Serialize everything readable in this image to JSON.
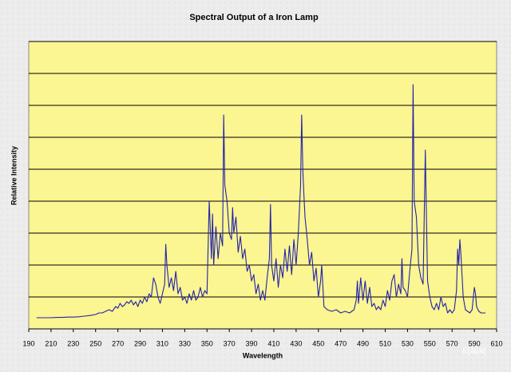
{
  "chart_data": {
    "type": "line",
    "title": "Spectral Output of a Iron Lamp",
    "x_label": "Wavelength",
    "y_label": "Relative Intensity",
    "x": [
      197,
      200,
      205,
      210,
      215,
      220,
      225,
      230,
      235,
      240,
      245,
      250,
      253,
      256,
      259,
      262,
      265,
      268,
      270,
      272,
      274,
      276,
      278,
      280,
      282,
      284,
      286,
      288,
      290,
      292,
      294,
      296,
      298,
      300,
      302,
      304,
      306,
      308,
      310,
      312,
      313,
      314,
      316,
      318,
      320,
      322,
      324,
      326,
      328,
      330,
      332,
      334,
      336,
      338,
      340,
      342,
      344,
      346,
      348,
      350,
      352,
      354,
      355,
      356,
      358,
      360,
      362,
      364,
      365,
      366,
      368,
      370,
      372,
      373,
      374,
      376,
      378,
      380,
      382,
      384,
      386,
      388,
      390,
      392,
      394,
      396,
      398,
      400,
      402,
      404,
      406,
      407,
      408,
      410,
      412,
      414,
      416,
      418,
      420,
      422,
      424,
      426,
      428,
      430,
      432,
      434,
      435,
      436,
      437,
      438,
      440,
      442,
      444,
      446,
      448,
      450,
      452,
      453,
      455,
      458,
      462,
      466,
      470,
      474,
      478,
      482,
      484,
      485,
      486,
      488,
      490,
      492,
      494,
      496,
      498,
      500,
      502,
      504,
      506,
      508,
      510,
      512,
      514,
      516,
      518,
      520,
      522,
      524,
      525,
      526,
      528,
      530,
      532,
      534,
      535,
      536,
      538,
      540,
      542,
      544,
      546,
      547,
      548,
      550,
      552,
      554,
      556,
      558,
      560,
      562,
      564,
      566,
      568,
      570,
      572,
      574,
      575,
      576,
      577,
      578,
      580,
      582,
      584,
      586,
      588,
      590,
      591,
      592,
      594,
      596,
      598,
      600
    ],
    "series": [
      {
        "name": "Relative Intensity",
        "color": "#2323a8",
        "values": [
          0.35,
          0.35,
          0.35,
          0.35,
          0.36,
          0.36,
          0.37,
          0.37,
          0.38,
          0.4,
          0.42,
          0.45,
          0.5,
          0.5,
          0.55,
          0.6,
          0.55,
          0.7,
          0.65,
          0.8,
          0.7,
          0.75,
          0.85,
          0.8,
          0.9,
          0.75,
          0.85,
          0.7,
          0.9,
          0.8,
          1.0,
          0.85,
          1.1,
          1.0,
          1.6,
          1.4,
          1.0,
          0.8,
          1.1,
          1.4,
          2.65,
          2.0,
          1.3,
          1.6,
          1.2,
          1.8,
          1.1,
          1.3,
          0.9,
          1.0,
          0.8,
          1.1,
          0.9,
          1.2,
          0.9,
          1.0,
          1.3,
          1.0,
          1.2,
          1.1,
          4.0,
          2.2,
          3.6,
          2.0,
          3.2,
          2.2,
          3.0,
          2.6,
          6.7,
          4.5,
          4.0,
          3.0,
          2.8,
          3.8,
          3.0,
          3.5,
          2.4,
          2.9,
          2.2,
          2.5,
          1.8,
          2.0,
          1.5,
          1.7,
          1.1,
          1.4,
          0.9,
          1.2,
          0.9,
          1.6,
          2.2,
          3.9,
          2.0,
          1.5,
          2.2,
          1.3,
          2.0,
          1.6,
          2.5,
          1.8,
          2.6,
          1.7,
          2.8,
          2.0,
          3.0,
          4.5,
          6.7,
          5.0,
          4.2,
          3.5,
          2.8,
          2.0,
          2.4,
          1.5,
          1.9,
          1.0,
          1.5,
          2.0,
          0.7,
          0.6,
          0.55,
          0.6,
          0.5,
          0.55,
          0.5,
          0.6,
          0.9,
          1.5,
          0.8,
          1.6,
          0.9,
          1.5,
          0.8,
          1.3,
          0.7,
          0.8,
          0.6,
          0.7,
          0.6,
          0.9,
          0.7,
          1.2,
          0.9,
          1.5,
          1.7,
          1.0,
          1.4,
          1.1,
          2.2,
          1.3,
          1.2,
          1.0,
          1.8,
          2.5,
          7.65,
          4.0,
          3.5,
          2.0,
          1.6,
          1.4,
          5.6,
          3.5,
          1.5,
          1.0,
          0.7,
          0.6,
          0.8,
          0.6,
          1.0,
          0.7,
          0.8,
          0.5,
          0.6,
          0.5,
          0.6,
          1.2,
          2.5,
          2.0,
          2.8,
          2.3,
          1.0,
          0.6,
          0.55,
          0.5,
          0.6,
          1.3,
          1.1,
          0.7,
          0.55,
          0.5,
          0.5,
          0.5
        ]
      }
    ],
    "xlim": [
      190,
      610
    ],
    "xticks": [
      190,
      210,
      230,
      250,
      270,
      290,
      310,
      330,
      350,
      370,
      390,
      410,
      430,
      450,
      470,
      490,
      510,
      530,
      550,
      570,
      590,
      610
    ],
    "ylim": [
      0,
      9
    ],
    "yticks": [
      0,
      1,
      2,
      3,
      4,
      5,
      6,
      7,
      8,
      9
    ],
    "ytick_labels": false,
    "grid": true,
    "plot_background": "#fbf592"
  },
  "watermark": "티씨씨"
}
